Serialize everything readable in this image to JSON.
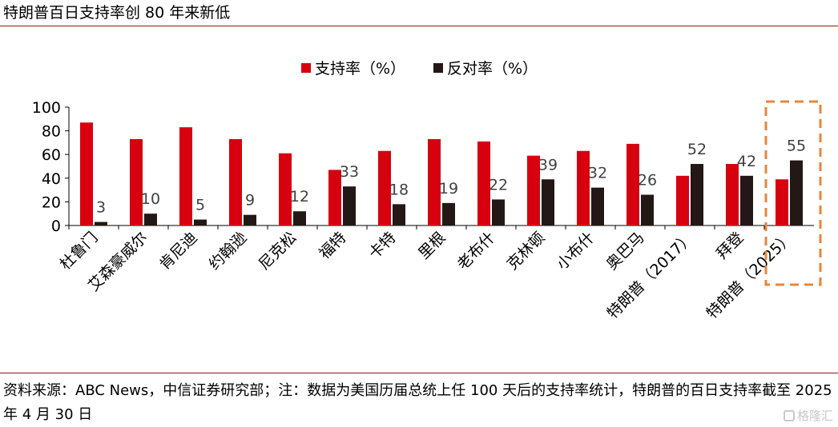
{
  "title": "特朗普百日支持率创 80 年来新低",
  "footnote": "资料来源：ABC News，中信证券研究部；注：数据为美国历届总统上任 100 天后的支持率统计，特朗普的百日支持率截至 2025 年 4 月 30 日",
  "watermark": "格隆汇",
  "colors": {
    "approve": "#d7000f",
    "disapprove": "#231815",
    "highlight": "#e8863a",
    "rule": "#8b1a1a"
  },
  "chart_data": {
    "type": "bar",
    "categories": [
      "杜鲁门",
      "艾森豪威尔",
      "肯尼迪",
      "约翰逊",
      "尼克松",
      "福特",
      "卡特",
      "里根",
      "老布什",
      "克林顿",
      "小布什",
      "奥巴马",
      "特朗普（2017）",
      "拜登",
      "特朗普（2025）"
    ],
    "series": [
      {
        "name": "支持率（%）",
        "values": [
          87,
          73,
          83,
          73,
          61,
          47,
          63,
          73,
          71,
          59,
          63,
          69,
          42,
          52,
          39
        ]
      },
      {
        "name": "反对率（%）",
        "values": [
          3,
          10,
          5,
          9,
          12,
          33,
          18,
          19,
          22,
          39,
          32,
          26,
          52,
          42,
          55
        ]
      }
    ],
    "data_labels": [
      "3",
      "10",
      "5",
      "9",
      "12",
      "33",
      "18",
      "19",
      "22",
      "39",
      "32",
      "26",
      "52",
      "42",
      "55"
    ],
    "yticks": [
      "0",
      "20",
      "40",
      "60",
      "80",
      "100"
    ],
    "ylim": [
      0,
      100
    ],
    "grid": false,
    "legend": "top-center",
    "highlight_category": "特朗普（2025）"
  }
}
